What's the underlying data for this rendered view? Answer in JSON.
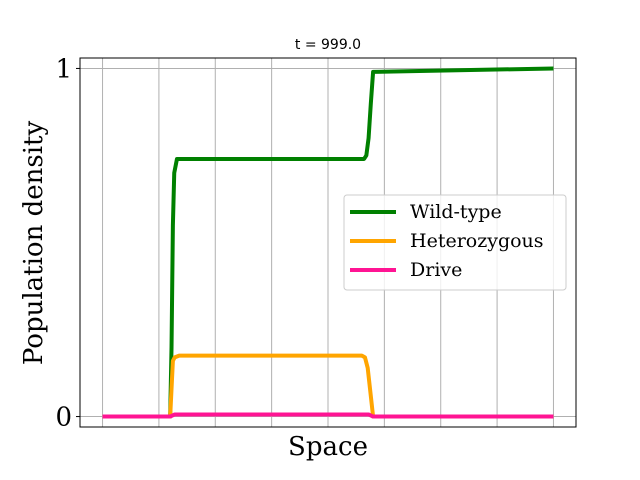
{
  "chart_data": {
    "type": "line",
    "title": "t = 999.0",
    "xlabel": "Space",
    "ylabel": "Population density",
    "xlim": [
      -0.05,
      1.05
    ],
    "ylim": [
      -0.03,
      1.03
    ],
    "xticks_labeled": false,
    "yticks": [
      0,
      1
    ],
    "ytick_labels": [
      "0",
      "1"
    ],
    "vertical_grid_x": [
      0,
      0.125,
      0.25,
      0.375,
      0.5,
      0.625,
      0.75,
      0.875,
      1.0
    ],
    "horizontal_grid_y": [
      0,
      1
    ],
    "legend_position": "center-right",
    "series": [
      {
        "name": "Wild-type",
        "color": "#008000",
        "x": [
          0,
          0.15,
          0.153,
          0.156,
          0.159,
          0.165,
          0.175,
          0.58,
          0.585,
          0.59,
          0.595,
          0.6,
          1.0
        ],
        "y": [
          0,
          0,
          0.2,
          0.55,
          0.7,
          0.74,
          0.74,
          0.74,
          0.75,
          0.8,
          0.9,
          0.99,
          1.0
        ]
      },
      {
        "name": "Heterozygous",
        "color": "#ffa500",
        "x": [
          0,
          0.15,
          0.153,
          0.156,
          0.16,
          0.17,
          0.575,
          0.582,
          0.588,
          0.594,
          0.6,
          1.0
        ],
        "y": [
          0,
          0,
          0.08,
          0.16,
          0.17,
          0.175,
          0.175,
          0.17,
          0.14,
          0.07,
          0,
          0
        ]
      },
      {
        "name": "Drive",
        "color": "#ff1493",
        "x": [
          0,
          0.15,
          0.16,
          0.59,
          0.6,
          1.0
        ],
        "y": [
          0,
          0,
          0.006,
          0.006,
          0,
          0
        ]
      }
    ]
  }
}
